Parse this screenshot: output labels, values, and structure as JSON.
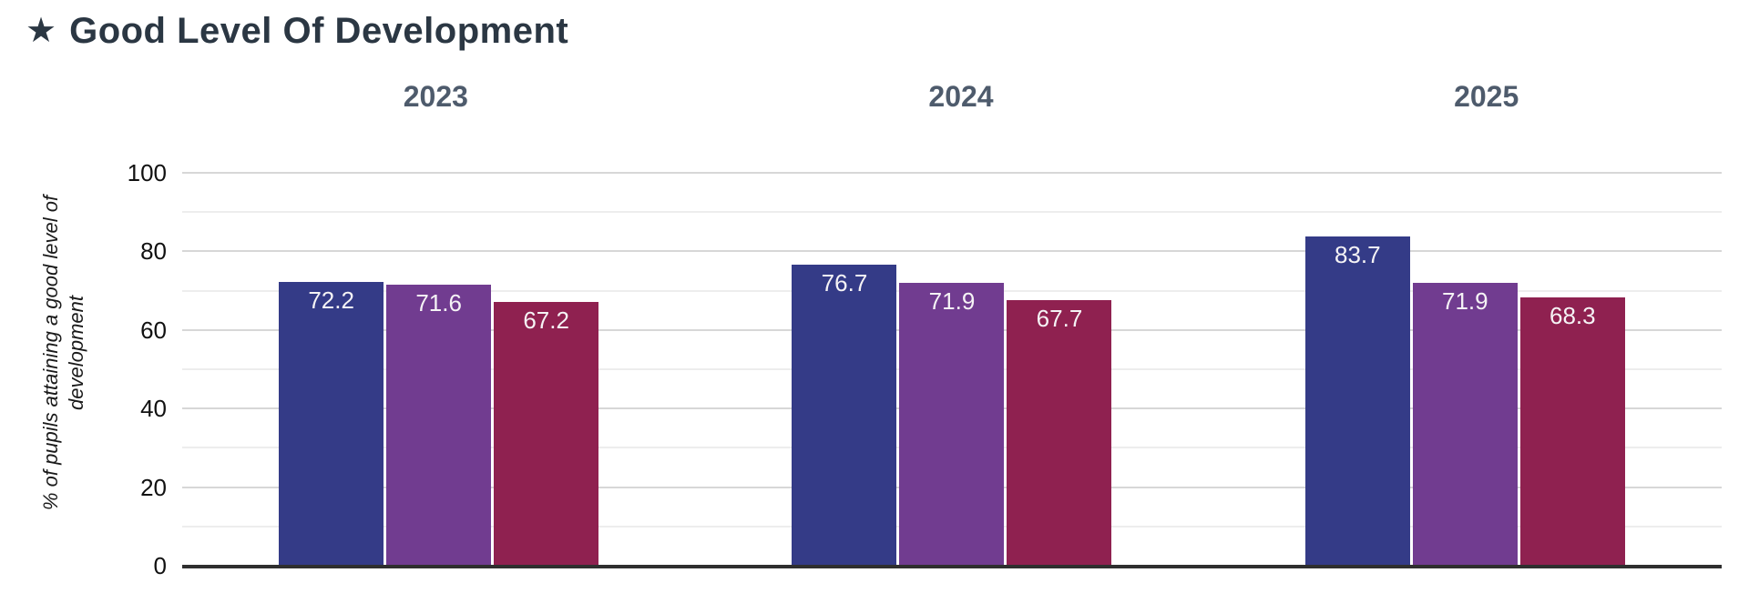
{
  "title": {
    "icon": "star-icon",
    "text": "Good Level Of Development",
    "star_glyph": "★"
  },
  "chart_data": {
    "type": "bar",
    "groups": [
      "2023",
      "2024",
      "2025"
    ],
    "series": [
      {
        "name": "series-indigo",
        "color": "#343b87",
        "values": [
          72.2,
          76.7,
          83.7
        ]
      },
      {
        "name": "series-purple",
        "color": "#713c90",
        "values": [
          71.6,
          71.9,
          71.9
        ]
      },
      {
        "name": "series-crimson",
        "color": "#8f2150",
        "values": [
          67.2,
          67.7,
          68.3
        ]
      }
    ],
    "value_labels": [
      [
        "72.2",
        "71.6",
        "67.2"
      ],
      [
        "76.7",
        "71.9",
        "67.7"
      ],
      [
        "83.7",
        "71.9",
        "68.3"
      ]
    ],
    "ylabel": "% of pupils attaining a good level of development",
    "ylim": [
      0,
      100
    ],
    "yticks": [
      0,
      20,
      40,
      60,
      80,
      100
    ],
    "minor_ticks": [
      10,
      30,
      50,
      70,
      90
    ],
    "grid": true,
    "legend_position": "none",
    "colors": {
      "title": "#2b3743",
      "group_header": "#4e5b6c",
      "tick_label": "#111111",
      "axis_line": "#2f2f2f",
      "grid_major": "#d7d7d7",
      "grid_minor": "#ededed",
      "bar_label": "#f5f3f5"
    }
  }
}
